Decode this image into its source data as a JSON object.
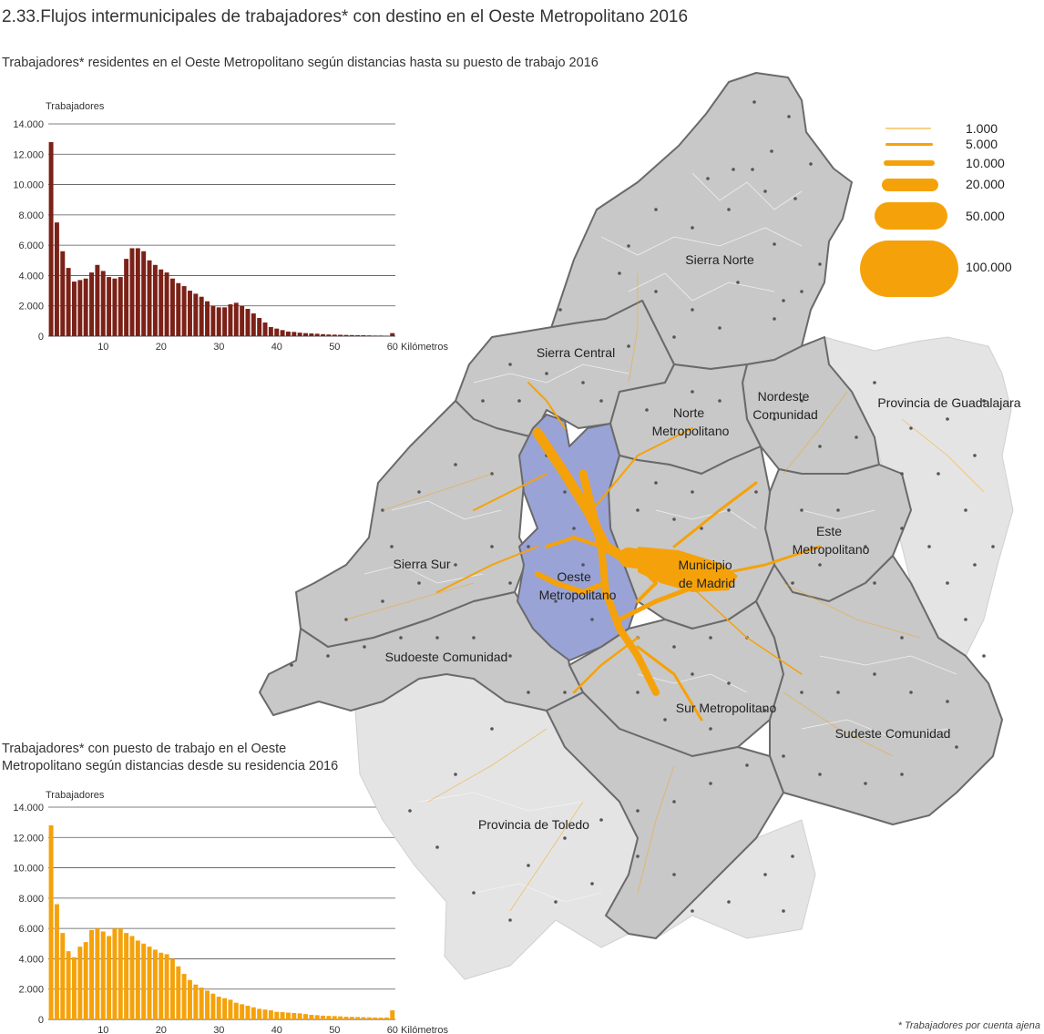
{
  "title": "2.33.Flujos intermunicipales de trabajadores* con destino en el Oeste Metropolitano 2016",
  "footnote": "* Trabajadores por cuenta ajena",
  "map": {
    "regions": [
      {
        "id": "sierra-norte",
        "name": "Sierra Norte"
      },
      {
        "id": "sierra-central",
        "name": "Sierra Central"
      },
      {
        "id": "nordeste-comunidad",
        "name_lines": [
          "Nordeste",
          "Comunidad"
        ]
      },
      {
        "id": "norte-metropolitano",
        "name_lines": [
          "Norte",
          "Metropolitano"
        ]
      },
      {
        "id": "este-metropolitano",
        "name_lines": [
          "Este",
          "Metropolitano"
        ]
      },
      {
        "id": "municipio-madrid",
        "name_lines": [
          "Municipio",
          "de Madrid"
        ]
      },
      {
        "id": "oeste-metropolitano",
        "name_lines": [
          "Oeste",
          "Metropolitano"
        ]
      },
      {
        "id": "sierra-sur",
        "name": "Sierra Sur"
      },
      {
        "id": "sudoeste-comunidad",
        "name": "Sudoeste Comunidad"
      },
      {
        "id": "sur-metropolitano",
        "name": "Sur Metropolitano"
      },
      {
        "id": "sudeste-comunidad",
        "name": "Sudeste Comunidad"
      },
      {
        "id": "provincia-guadalajara",
        "name": "Provincia de Guadalajara"
      },
      {
        "id": "provincia-toledo",
        "name": "Provincia de Toledo"
      }
    ],
    "colors": {
      "region_fill": "#c8c8c8",
      "outside_fill": "#e4e4e4",
      "highlight_fill": "#9aa3d6",
      "flow": "#f5a20a",
      "border": "#6a6a6a"
    },
    "legend": [
      {
        "value": 1000,
        "label": "1.000"
      },
      {
        "value": 5000,
        "label": "5.000"
      },
      {
        "value": 10000,
        "label": "10.000"
      },
      {
        "value": 20000,
        "label": "20.000"
      },
      {
        "value": 50000,
        "label": "50.000"
      },
      {
        "value": 100000,
        "label": "100.000"
      }
    ]
  },
  "chart_data": [
    {
      "type": "bar",
      "title": "Trabajadores* residentes en el Oeste Metropolitano según distancias hasta su puesto de trabajo 2016",
      "ylabel": "Trabajadores",
      "xlabel": "Kilómetros",
      "color": "#7b2117",
      "ylim": [
        0,
        14000
      ],
      "yticks": [
        0,
        2000,
        4000,
        6000,
        8000,
        10000,
        12000,
        14000
      ],
      "ytick_labels": [
        "0",
        "2.000",
        "4.000",
        "6.000",
        "8.000",
        "10.000",
        "12.000",
        "14.000"
      ],
      "xticks": [
        10,
        20,
        30,
        40,
        50,
        60
      ],
      "grid": true,
      "x": [
        1,
        2,
        3,
        4,
        5,
        6,
        7,
        8,
        9,
        10,
        11,
        12,
        13,
        14,
        15,
        16,
        17,
        18,
        19,
        20,
        21,
        22,
        23,
        24,
        25,
        26,
        27,
        28,
        29,
        30,
        31,
        32,
        33,
        34,
        35,
        36,
        37,
        38,
        39,
        40,
        41,
        42,
        43,
        44,
        45,
        46,
        47,
        48,
        49,
        50,
        51,
        52,
        53,
        54,
        55,
        56,
        57,
        58,
        59,
        60
      ],
      "values": [
        12800,
        7500,
        5600,
        4500,
        3600,
        3700,
        3800,
        4200,
        4700,
        4300,
        3900,
        3800,
        3900,
        5100,
        5800,
        5800,
        5600,
        5000,
        4700,
        4400,
        4200,
        3800,
        3500,
        3300,
        3000,
        2800,
        2600,
        2300,
        2000,
        1900,
        1900,
        2100,
        2200,
        2000,
        1800,
        1500,
        1200,
        900,
        600,
        500,
        400,
        300,
        280,
        230,
        200,
        180,
        160,
        130,
        110,
        100,
        90,
        80,
        70,
        60,
        60,
        50,
        40,
        40,
        30,
        200
      ]
    },
    {
      "type": "bar",
      "title": "Trabajadores* con puesto de trabajo en el Oeste Metropolitano según distancias desde su residencia 2016",
      "ylabel": "Trabajadores",
      "xlabel": "Kilómetros",
      "color": "#f5a20a",
      "ylim": [
        0,
        14000
      ],
      "yticks": [
        0,
        2000,
        4000,
        6000,
        8000,
        10000,
        12000,
        14000
      ],
      "ytick_labels": [
        "0",
        "2.000",
        "4.000",
        "6.000",
        "8.000",
        "10.000",
        "12.000",
        "14.000"
      ],
      "xticks": [
        10,
        20,
        30,
        40,
        50,
        60
      ],
      "grid": true,
      "x": [
        1,
        2,
        3,
        4,
        5,
        6,
        7,
        8,
        9,
        10,
        11,
        12,
        13,
        14,
        15,
        16,
        17,
        18,
        19,
        20,
        21,
        22,
        23,
        24,
        25,
        26,
        27,
        28,
        29,
        30,
        31,
        32,
        33,
        34,
        35,
        36,
        37,
        38,
        39,
        40,
        41,
        42,
        43,
        44,
        45,
        46,
        47,
        48,
        49,
        50,
        51,
        52,
        53,
        54,
        55,
        56,
        57,
        58,
        59,
        60
      ],
      "values": [
        12800,
        7600,
        5700,
        4500,
        4100,
        4800,
        5100,
        5900,
        6000,
        5800,
        5500,
        6000,
        6000,
        5700,
        5500,
        5200,
        5000,
        4800,
        4600,
        4400,
        4300,
        4000,
        3500,
        3000,
        2600,
        2300,
        2100,
        1900,
        1700,
        1500,
        1400,
        1300,
        1100,
        1000,
        900,
        800,
        700,
        650,
        600,
        500,
        480,
        450,
        420,
        400,
        350,
        300,
        280,
        250,
        230,
        220,
        200,
        180,
        170,
        160,
        150,
        140,
        130,
        120,
        130,
        600
      ]
    }
  ]
}
